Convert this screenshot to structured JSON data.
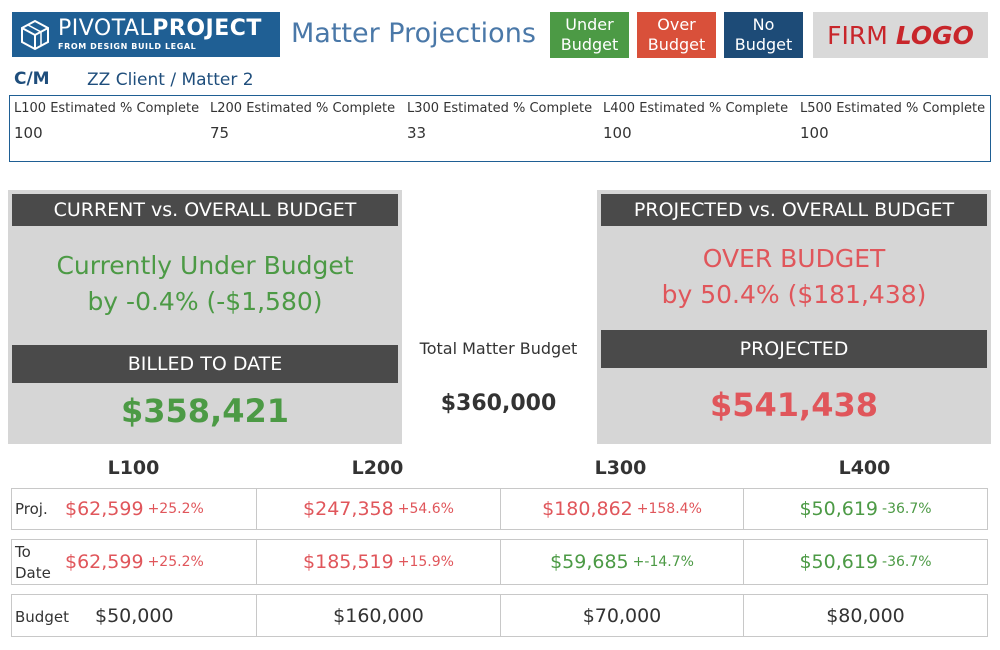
{
  "header": {
    "logo": {
      "text_light": "PIVOTAL",
      "text_bold": "PROJECT",
      "tagline": "FROM DESIGN BUILD LEGAL"
    },
    "title": "Matter Projections",
    "legend": {
      "under": {
        "line1": "Under",
        "line2": "Budget",
        "color": "#4c9a45"
      },
      "over": {
        "line1": "Over",
        "line2": "Budget",
        "color": "#d9503a"
      },
      "none": {
        "line1": "No",
        "line2": "Budget",
        "color": "#1d4b77"
      }
    },
    "firm_logo": {
      "text": "FIRM",
      "emphasis": "LOGO"
    }
  },
  "client_matter": {
    "label": "C/M",
    "value": "ZZ Client / Matter 2"
  },
  "percent_complete": [
    {
      "label": "L100 Estimated % Complete",
      "value": "100"
    },
    {
      "label": "L200 Estimated % Complete",
      "value": "75"
    },
    {
      "label": "L300 Estimated % Complete",
      "value": "33"
    },
    {
      "label": "L400 Estimated % Complete",
      "value": "100"
    },
    {
      "label": "L500 Estimated % Complete",
      "value": "100"
    }
  ],
  "current_panel": {
    "header": "CURRENT vs. OVERALL BUDGET",
    "status_line1": "Currently Under Budget",
    "status_line2": "by -0.4% (-$1,580)",
    "sub_header": "BILLED TO DATE",
    "amount": "$358,421"
  },
  "projected_panel": {
    "header": "PROJECTED vs. OVERALL BUDGET",
    "status_line1": "OVER BUDGET",
    "status_line2": "by 50.4% ($181,438)",
    "sub_header": "PROJECTED",
    "amount": "$541,438"
  },
  "total_budget": {
    "label": "Total Matter Budget",
    "value": "$360,000"
  },
  "table": {
    "columns": [
      "L100",
      "L200",
      "L300",
      "L400"
    ],
    "rows": {
      "proj": {
        "label": "Proj.",
        "cells": [
          {
            "amount": "$62,599",
            "pct": "+25.2%",
            "status": "over"
          },
          {
            "amount": "$247,358",
            "pct": "+54.6%",
            "status": "over"
          },
          {
            "amount": "$180,862",
            "pct": "+158.4%",
            "status": "over"
          },
          {
            "amount": "$50,619",
            "pct": "-36.7%",
            "status": "under"
          }
        ]
      },
      "to_date": {
        "label_line1": "To",
        "label_line2": "Date",
        "cells": [
          {
            "amount": "$62,599",
            "pct": "+25.2%",
            "status": "over"
          },
          {
            "amount": "$185,519",
            "pct": "+15.9%",
            "status": "over"
          },
          {
            "amount": "$59,685",
            "pct": "+-14.7%",
            "status": "under"
          },
          {
            "amount": "$50,619",
            "pct": "-36.7%",
            "status": "under"
          }
        ]
      },
      "budget": {
        "label": "Budget",
        "cells": [
          "$50,000",
          "$160,000",
          "$70,000",
          "$80,000"
        ]
      }
    }
  }
}
